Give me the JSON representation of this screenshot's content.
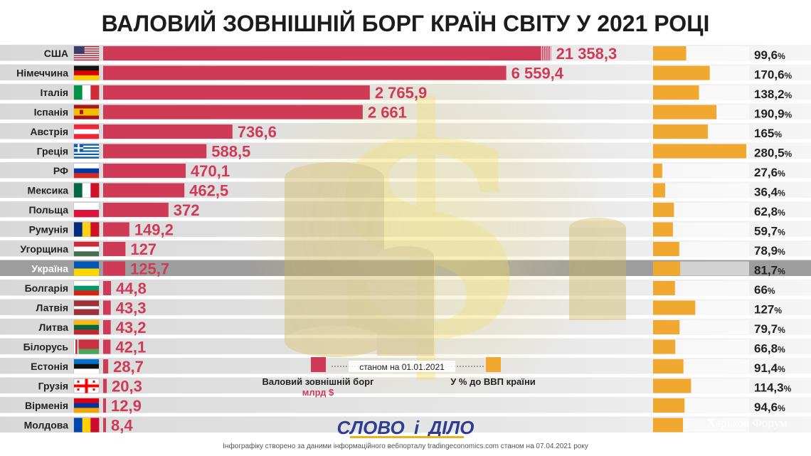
{
  "colors": {
    "debt_bar": "#cf3b56",
    "gdp_bar": "#f0a830",
    "row_stripe": "#d9d9d9",
    "highlight_row": "#8c8c8c"
  },
  "chart_data": {
    "type": "bar",
    "title": "ВАЛОВИЙ ЗОВНІШНІЙ БОРГ КРАЇН СВІТУ У 2021 РОЦІ",
    "highlight_category": "Україна",
    "categories": [
      "США",
      "Німеччина",
      "Італія",
      "Іспанія",
      "Австрія",
      "Греція",
      "РФ",
      "Мексика",
      "Польща",
      "Румунія",
      "Угорщина",
      "Україна",
      "Болгарія",
      "Латвія",
      "Литва",
      "Білорусь",
      "Естонія",
      "Грузія",
      "Вірменія",
      "Молдова"
    ],
    "series": [
      {
        "name": "Валовий зовнішній борг",
        "unit": "млрд $",
        "values": [
          21358.3,
          6559.4,
          2765.9,
          2661,
          736.6,
          588.5,
          470.1,
          462.5,
          372,
          149.2,
          127,
          125.7,
          44.8,
          43.3,
          43.2,
          42.1,
          28.7,
          20.3,
          12.9,
          8.4
        ],
        "labels": [
          "21 358,3",
          "6 559,4",
          "2 765,9",
          "2 661",
          "736,6",
          "588,5",
          "470,1",
          "462,5",
          "372",
          "149,2",
          "127",
          "125,7",
          "44,8",
          "43,3",
          "43,2",
          "42,1",
          "28,7",
          "20,3",
          "12,9",
          "8,4"
        ]
      },
      {
        "name": "У % до ВВП країни",
        "unit": "%",
        "values": [
          99.6,
          170.6,
          138.2,
          190.9,
          165,
          280.5,
          27.6,
          36.4,
          62.8,
          59.7,
          78.9,
          81.7,
          66,
          127,
          79.7,
          66.8,
          91.4,
          114.3,
          94.6,
          90
        ],
        "labels": [
          "99,6",
          "170,6",
          "138,2",
          "190,9",
          "165",
          "280,5",
          "27,6",
          "36,4",
          "62,8",
          "59,7",
          "78,9",
          "81,7",
          "66",
          "127",
          "79,7",
          "66,8",
          "91,4",
          "114,3",
          "94,6",
          ""
        ]
      }
    ]
  },
  "flags": [
    {
      "country": "США",
      "kind": "us"
    },
    {
      "country": "Німеччина",
      "kind": "h",
      "colors": [
        "#111111",
        "#dd0000",
        "#ffce00"
      ]
    },
    {
      "country": "Італія",
      "kind": "v",
      "colors": [
        "#009246",
        "#ffffff",
        "#ce2b37"
      ]
    },
    {
      "country": "Іспанія",
      "kind": "es"
    },
    {
      "country": "Австрія",
      "kind": "h",
      "colors": [
        "#ed2939",
        "#ffffff",
        "#ed2939"
      ]
    },
    {
      "country": "Греція",
      "kind": "gr"
    },
    {
      "country": "РФ",
      "kind": "h",
      "colors": [
        "#ffffff",
        "#0039a6",
        "#d52b1e"
      ]
    },
    {
      "country": "Мексика",
      "kind": "v",
      "colors": [
        "#006847",
        "#ffffff",
        "#ce1126"
      ]
    },
    {
      "country": "Польща",
      "kind": "h",
      "colors": [
        "#ffffff",
        "#dc143c"
      ]
    },
    {
      "country": "Румунія",
      "kind": "v",
      "colors": [
        "#002b7f",
        "#fcd116",
        "#ce1126"
      ]
    },
    {
      "country": "Угорщина",
      "kind": "h",
      "colors": [
        "#ce2939",
        "#ffffff",
        "#477050"
      ]
    },
    {
      "country": "Україна",
      "kind": "h",
      "colors": [
        "#0057b7",
        "#ffd700"
      ]
    },
    {
      "country": "Болгарія",
      "kind": "h",
      "colors": [
        "#ffffff",
        "#00966e",
        "#d62612"
      ]
    },
    {
      "country": "Латвія",
      "kind": "h",
      "colors": [
        "#9e3039",
        "#9e3039",
        "#ffffff",
        "#9e3039",
        "#9e3039"
      ]
    },
    {
      "country": "Литва",
      "kind": "h",
      "colors": [
        "#fdb913",
        "#006a44",
        "#c1272d"
      ]
    },
    {
      "country": "Білорусь",
      "kind": "by"
    },
    {
      "country": "Естонія",
      "kind": "h",
      "colors": [
        "#0072ce",
        "#111111",
        "#ffffff"
      ]
    },
    {
      "country": "Грузія",
      "kind": "ge"
    },
    {
      "country": "Вірменія",
      "kind": "h",
      "colors": [
        "#d90012",
        "#0033a0",
        "#f2a800"
      ]
    },
    {
      "country": "Молдова",
      "kind": "v",
      "colors": [
        "#0046ae",
        "#ffd200",
        "#cc092f"
      ]
    }
  ],
  "legend": {
    "debt_label": "Валовий зовнішній борг",
    "debt_unit": "млрд $",
    "date": "станом на 01.01.2021",
    "gdp_label": "У % до ВВП країни"
  },
  "logo": {
    "part1": "СЛОВО",
    "part2": "і",
    "part3": "ДІЛО"
  },
  "footer": "Інфографіку створено за даними інформаційного вебпорталу tradingeconomics.com станом на 07.04.2021 року",
  "watermark": "Харьков Форум"
}
